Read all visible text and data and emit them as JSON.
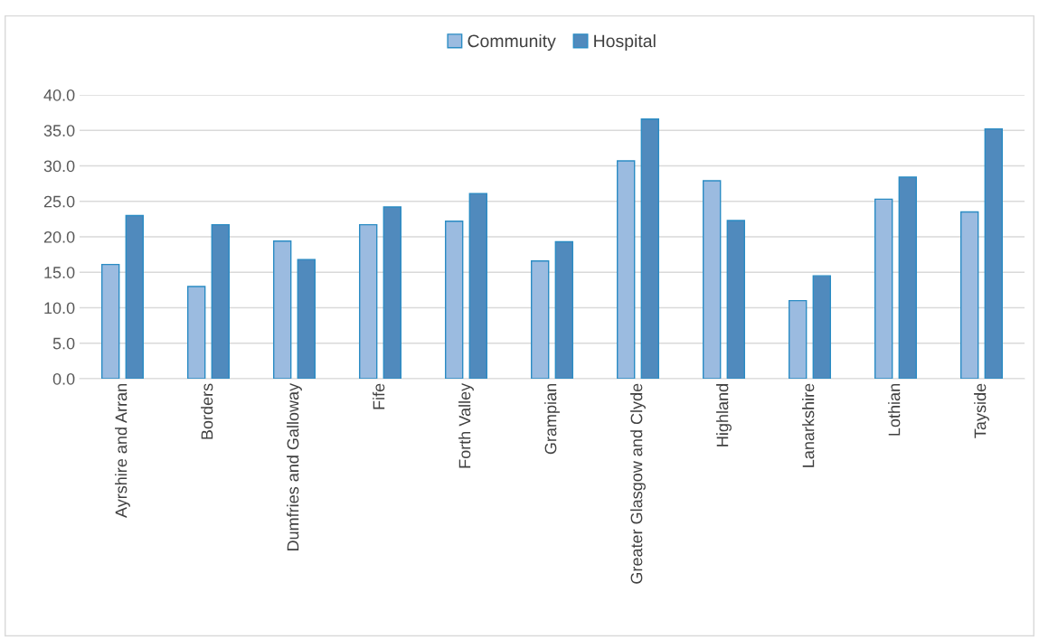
{
  "chart_data": {
    "type": "bar",
    "categories": [
      "Ayrshire and Arran",
      "Borders",
      "Dumfries and Galloway",
      "Fife",
      "Forth Valley",
      "Grampian",
      "Greater Glasgow and Clyde",
      "Highland",
      "Lanarkshire",
      "Lothian",
      "Tayside"
    ],
    "series": [
      {
        "name": "Community",
        "color": "#9bbbe0",
        "values": [
          16.1,
          13.0,
          19.4,
          21.7,
          22.2,
          16.6,
          30.7,
          27.9,
          11.0,
          25.3,
          23.5
        ]
      },
      {
        "name": "Hospital",
        "color": "#508abd",
        "values": [
          23.0,
          21.7,
          16.8,
          24.2,
          26.1,
          19.3,
          36.6,
          22.3,
          14.5,
          28.4,
          35.2
        ]
      }
    ],
    "ylim": [
      0,
      40
    ],
    "yticks": [
      {
        "value": 0,
        "label": "0.0"
      },
      {
        "value": 5,
        "label": "5.0"
      },
      {
        "value": 10,
        "label": "10.0"
      },
      {
        "value": 15,
        "label": "15.0"
      },
      {
        "value": 20,
        "label": "20.0"
      },
      {
        "value": 25,
        "label": "25.0"
      },
      {
        "value": 30,
        "label": "30.0"
      },
      {
        "value": 35,
        "label": "35.0"
      },
      {
        "value": 40,
        "label": "40.0"
      }
    ],
    "grid": "y",
    "legend": "top"
  }
}
